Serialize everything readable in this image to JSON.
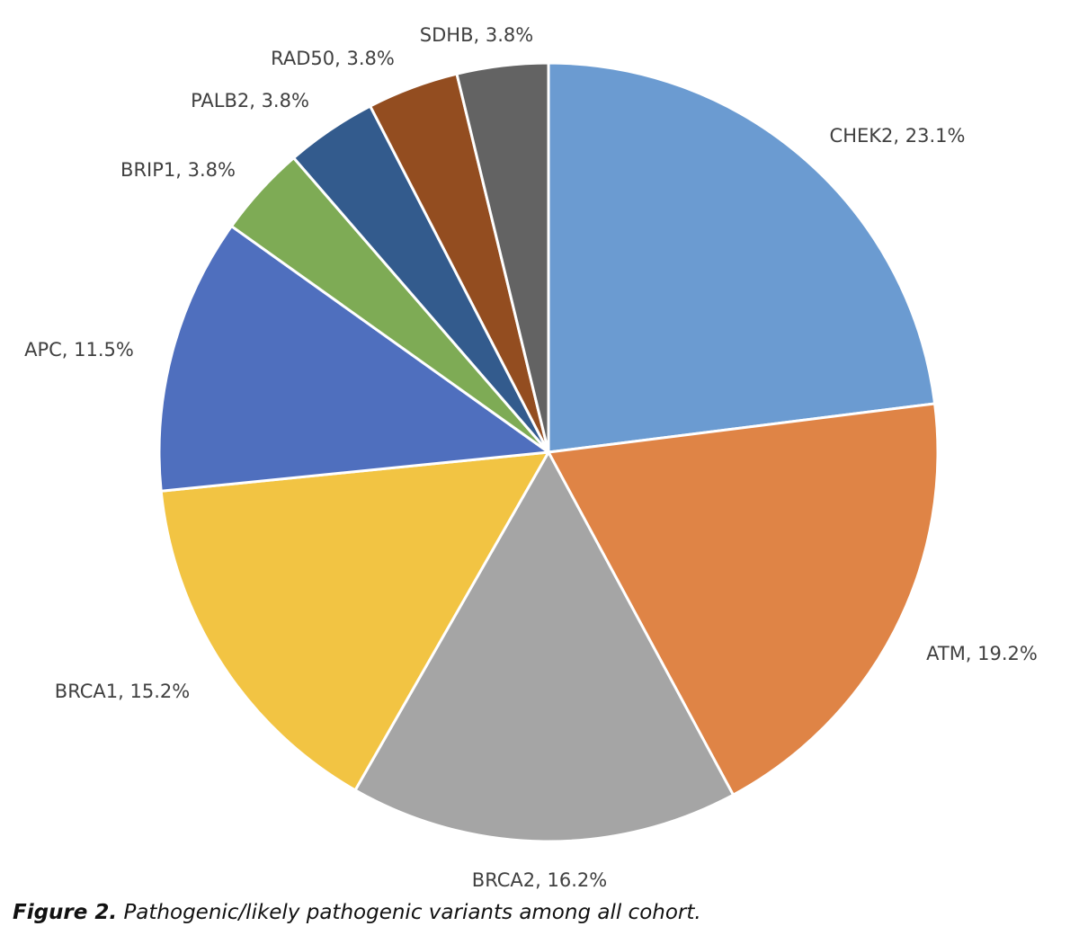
{
  "chart_data": {
    "type": "pie",
    "title": "",
    "start_angle_deg": 0,
    "direction": "clockwise",
    "slices": [
      {
        "label": "CHEK2",
        "value": 23.1,
        "value_label": "23.1%",
        "text": "CHEK2, 23.1%",
        "color": "#6b9bd1"
      },
      {
        "label": "ATM",
        "value": 19.2,
        "value_label": "19.2%",
        "text": "ATM, 19.2%",
        "color": "#df8446"
      },
      {
        "label": "BRCA2",
        "value": 16.2,
        "value_label": "16.2%",
        "text": "BRCA2, 16.2%",
        "color": "#a5a5a5"
      },
      {
        "label": "BRCA1",
        "value": 15.2,
        "value_label": "15.2%",
        "text": "BRCA1, 15.2%",
        "color": "#f2c443"
      },
      {
        "label": "APC",
        "value": 11.5,
        "value_label": "11.5%",
        "text": "APC, 11.5%",
        "color": "#4f6fbe"
      },
      {
        "label": "BRIP1",
        "value": 3.8,
        "value_label": "3.8%",
        "text": "BRIP1, 3.8%",
        "color": "#7eab55"
      },
      {
        "label": "PALB2",
        "value": 3.8,
        "value_label": "3.8%",
        "text": "PALB2, 3.8%",
        "color": "#335b8d"
      },
      {
        "label": "RAD50",
        "value": 3.8,
        "value_label": "3.8%",
        "text": "RAD50, 3.8%",
        "color": "#934d20"
      },
      {
        "label": "SDHB",
        "value": 3.8,
        "value_label": "3.8%",
        "text": "SDHB, 3.8%",
        "color": "#636363"
      }
    ],
    "label_color": "#404040",
    "slice_border_color": "#ffffff"
  },
  "caption": {
    "figure_number": "Figure 2.",
    "text": "Pathogenic/likely pathogenic variants among all cohort."
  }
}
